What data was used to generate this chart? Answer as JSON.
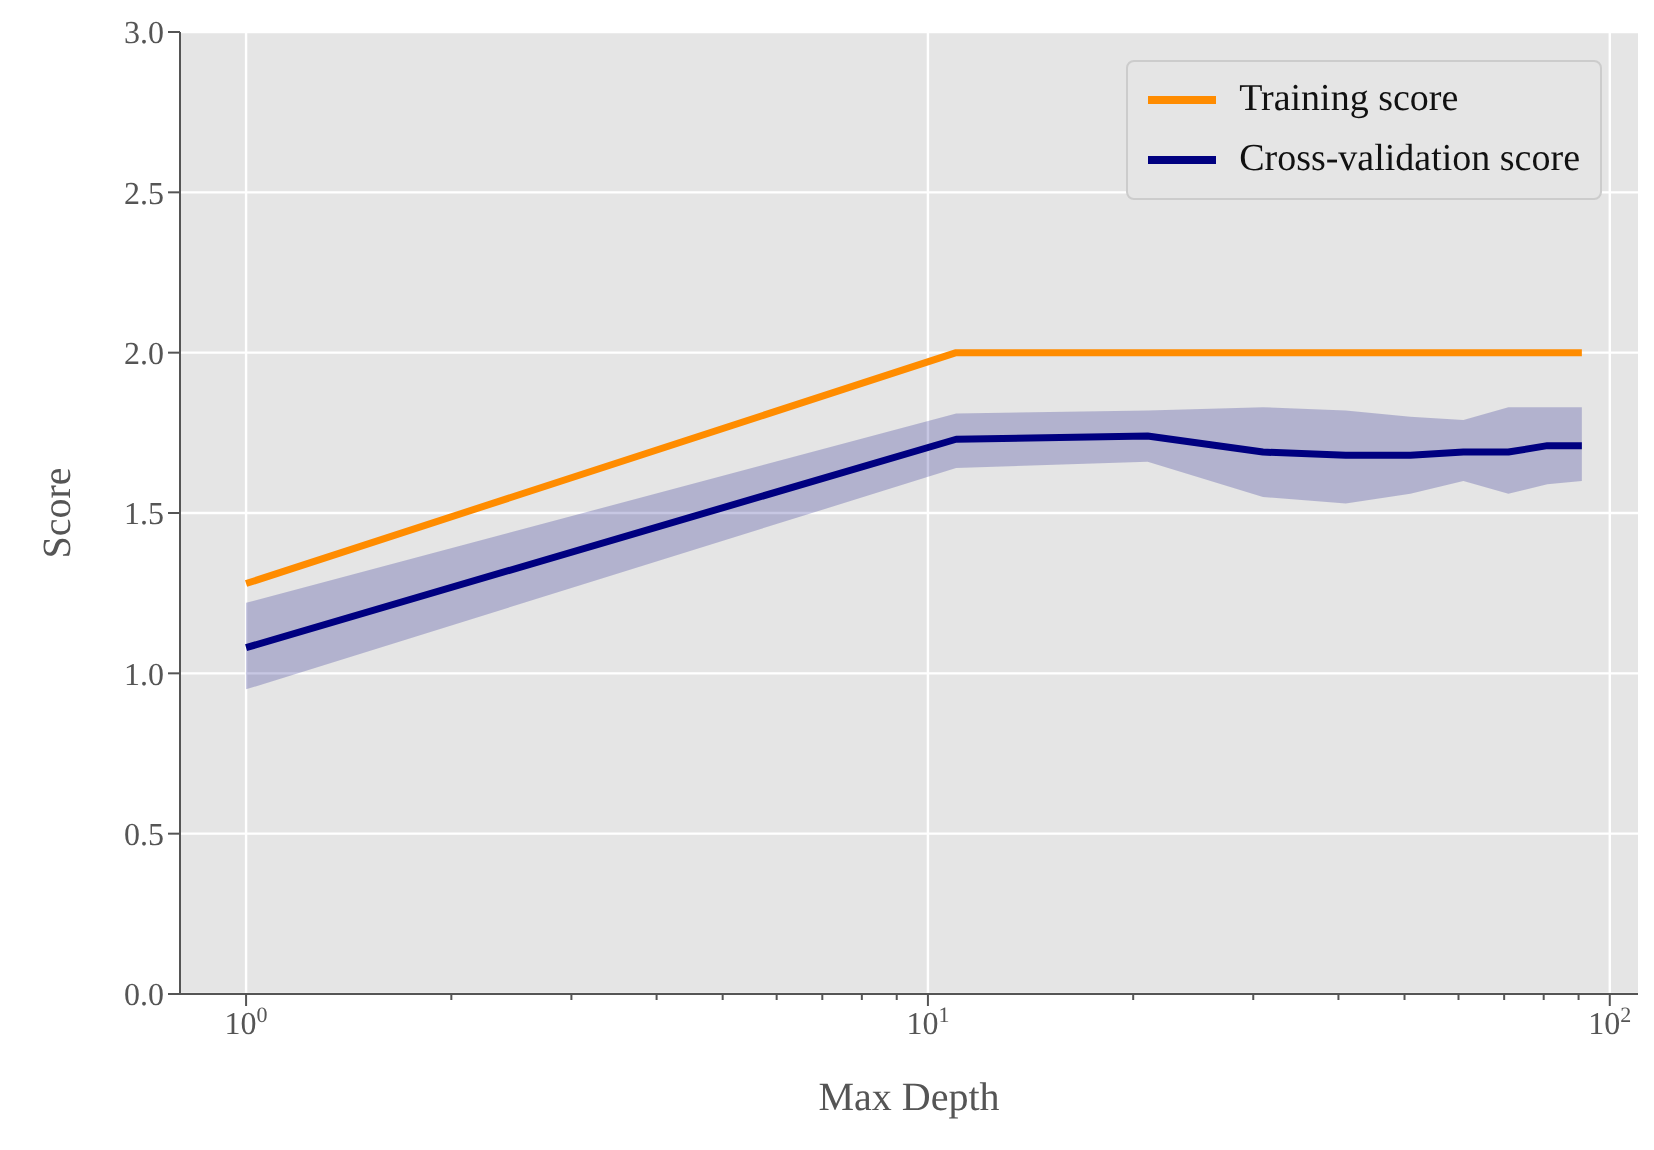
{
  "chart_data": {
    "type": "line",
    "xlabel": "Max Depth",
    "ylabel": "Score",
    "log": "x",
    "grid": true,
    "legend": "top right",
    "line_style": "solid",
    "marker": "none",
    "x": [
      1,
      11,
      21,
      31,
      41,
      51,
      61,
      71,
      81,
      91
    ],
    "xlim": [
      0.8,
      110
    ],
    "xticks": [
      {
        "value": 1,
        "label": "10$^{0}$"
      },
      {
        "value": 2,
        "label": null
      },
      {
        "value": 3,
        "label": null
      },
      {
        "value": 4,
        "label": null
      },
      {
        "value": 5,
        "label": null
      },
      {
        "value": 6,
        "label": null
      },
      {
        "value": 7,
        "label": null
      },
      {
        "value": 8,
        "label": null
      },
      {
        "value": 9,
        "label": null
      },
      {
        "value": 10,
        "label": "10$^{1}$"
      },
      {
        "value": 20,
        "label": null
      },
      {
        "value": 30,
        "label": null
      },
      {
        "value": 40,
        "label": null
      },
      {
        "value": 50,
        "label": null
      },
      {
        "value": 60,
        "label": null
      },
      {
        "value": 70,
        "label": null
      },
      {
        "value": 80,
        "label": null
      },
      {
        "value": 90,
        "label": null
      },
      {
        "value": 100,
        "label": "10$^{2}$"
      }
    ],
    "ylim": [
      0,
      3
    ],
    "yticks": [
      {
        "value": 0,
        "label": "0.0"
      },
      0.5,
      {
        "value": 1,
        "label": "1.0"
      },
      1.5,
      {
        "value": 2,
        "label": "2.0"
      },
      2.5,
      {
        "value": 3,
        "label": "3.0"
      }
    ],
    "series": [
      {
        "name": "Training score",
        "color": "#ff8c00",
        "values": [
          1.28,
          2.0,
          2.0,
          2.0,
          2.0,
          2.0,
          2.0,
          2.0,
          2.0,
          2.0
        ]
      },
      {
        "name": "Cross-validation score",
        "color": "#000080",
        "values": [
          1.08,
          1.73,
          1.74,
          1.69,
          1.68,
          1.68,
          1.69,
          1.69,
          1.71,
          1.71
        ],
        "lower": [
          0.95,
          1.64,
          1.66,
          1.55,
          1.53,
          1.56,
          1.6,
          1.56,
          1.59,
          1.6
        ],
        "upper": [
          1.22,
          1.81,
          1.82,
          1.83,
          1.82,
          1.8,
          1.79,
          1.83,
          1.83,
          1.83
        ]
      }
    ]
  }
}
